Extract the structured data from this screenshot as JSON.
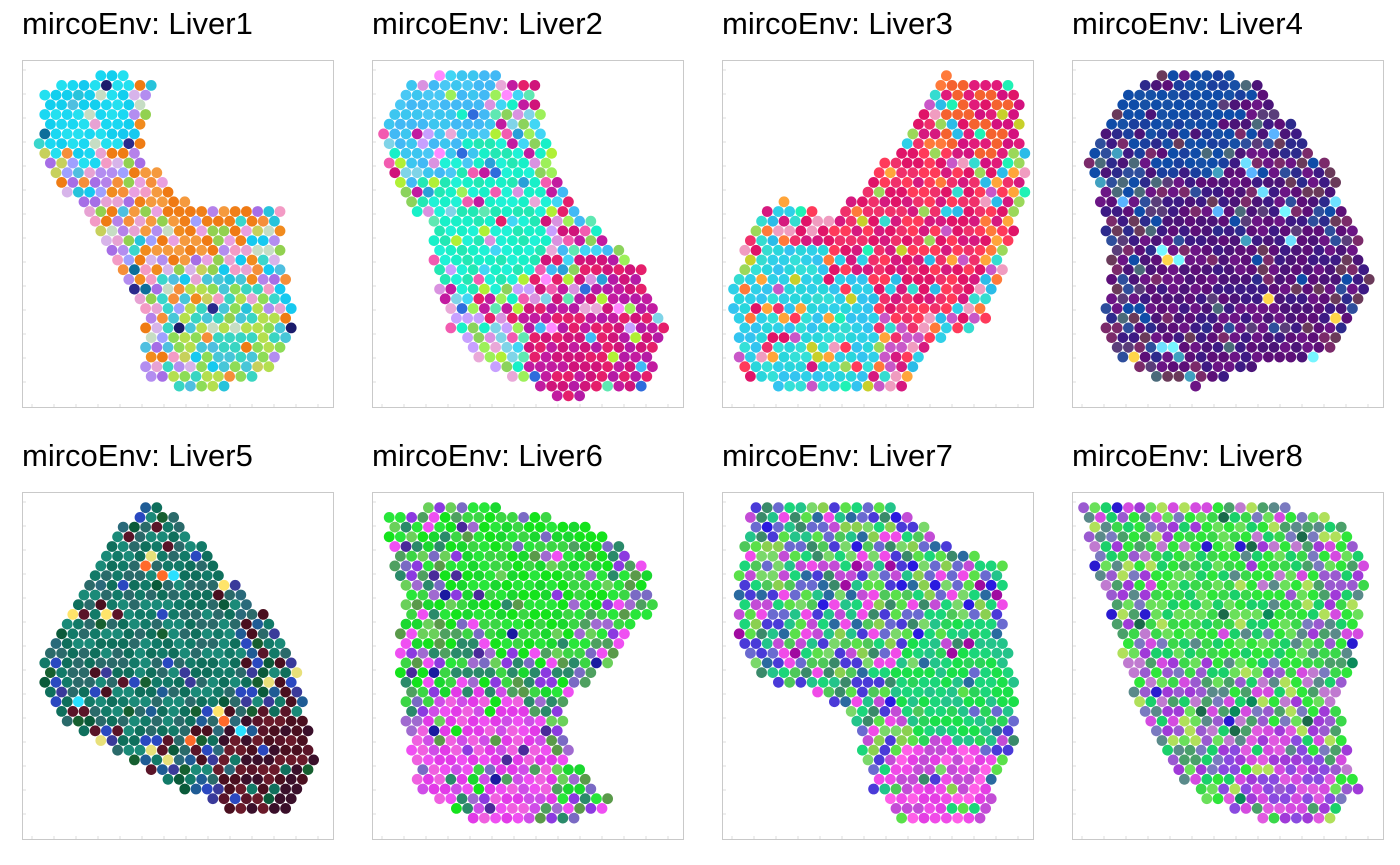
{
  "chart_data": [
    {
      "type": "scatter",
      "title": "mircoEnv: Liver1",
      "outline": [
        [
          0.42,
          0.06
        ],
        [
          0.38,
          0.28
        ],
        [
          0.55,
          0.42
        ],
        [
          0.83,
          0.42
        ],
        [
          0.85,
          0.65
        ],
        [
          0.88,
          0.75
        ],
        [
          0.78,
          0.9
        ],
        [
          0.58,
          0.96
        ],
        [
          0.4,
          0.92
        ],
        [
          0.38,
          0.72
        ],
        [
          0.3,
          0.58
        ],
        [
          0.18,
          0.42
        ],
        [
          0.05,
          0.28
        ],
        [
          0.06,
          0.1
        ],
        [
          0.15,
          0.05
        ],
        [
          0.3,
          0.04
        ]
      ],
      "regions": [
        {
          "c": [
            0.2,
            0.14
          ],
          "r": 0.16,
          "pal": [
            "#1ad8f2",
            "#23e0f0",
            "#12cfee"
          ]
        },
        {
          "c": [
            0.55,
            0.4
          ],
          "r": 0.2,
          "pal": [
            "#ef7a14",
            "#f07f18",
            "#e9a0e0",
            "#f59a3e"
          ]
        },
        {
          "c": [
            0.65,
            0.82
          ],
          "r": 0.2,
          "pal": [
            "#47c6d8",
            "#8ddc57",
            "#b4df4f",
            "#39d5c2"
          ]
        }
      ],
      "palette": [
        "#a66ee6",
        "#b582ea",
        "#e7a2d3",
        "#ef7c14",
        "#f18b1e",
        "#92d150",
        "#4fbfe0",
        "#c6ddc4",
        "#d7b4ea",
        "#f58f3a",
        "#3ad6cc",
        "#9fa0ff",
        "#27c3db",
        "#f39bc5",
        "#c7d05c",
        "#16c9f0",
        "#b38df0"
      ],
      "rare": [
        "#1b1b6b",
        "#0d6e9a",
        "#2a2a8c"
      ]
    },
    {
      "type": "scatter",
      "title": "mircoEnv: Liver2",
      "outline": [
        [
          0.1,
          0.06
        ],
        [
          0.3,
          0.03
        ],
        [
          0.52,
          0.06
        ],
        [
          0.55,
          0.2
        ],
        [
          0.62,
          0.38
        ],
        [
          0.72,
          0.48
        ],
        [
          0.85,
          0.58
        ],
        [
          0.95,
          0.75
        ],
        [
          0.88,
          0.95
        ],
        [
          0.6,
          0.97
        ],
        [
          0.4,
          0.9
        ],
        [
          0.25,
          0.78
        ],
        [
          0.2,
          0.62
        ],
        [
          0.18,
          0.48
        ],
        [
          0.05,
          0.32
        ],
        [
          0.03,
          0.18
        ]
      ],
      "regions": [
        {
          "c": [
            0.22,
            0.15
          ],
          "r": 0.18,
          "pal": [
            "#3cc6f0",
            "#49c8f5",
            "#42b9f5"
          ]
        },
        {
          "c": [
            0.35,
            0.45
          ],
          "r": 0.22,
          "pal": [
            "#18f0c8",
            "#22e8b4",
            "#1ff2d6"
          ]
        },
        {
          "c": [
            0.72,
            0.8
          ],
          "r": 0.24,
          "pal": [
            "#d0147a",
            "#e51f6b",
            "#c21ba0",
            "#b51aa5"
          ]
        }
      ],
      "palette": [
        "#42b9f5",
        "#7fd4e8",
        "#18f0c8",
        "#9df05a",
        "#d0147a",
        "#e51f6b",
        "#c21ba0",
        "#e9a8d8",
        "#8bd35c",
        "#41d6f5",
        "#f25bb0",
        "#b0f036",
        "#5fe8b2",
        "#d992e0",
        "#c7a0ff"
      ],
      "rare": [
        "#2f6cdc",
        "#2a9fd8",
        "#ff89ff"
      ]
    },
    {
      "type": "scatter",
      "title": "mircoEnv: Liver3",
      "outline": [
        [
          0.72,
          0.04
        ],
        [
          0.96,
          0.08
        ],
        [
          0.98,
          0.35
        ],
        [
          0.92,
          0.55
        ],
        [
          0.85,
          0.75
        ],
        [
          0.65,
          0.82
        ],
        [
          0.6,
          0.96
        ],
        [
          0.25,
          0.96
        ],
        [
          0.05,
          0.9
        ],
        [
          0.03,
          0.65
        ],
        [
          0.12,
          0.43
        ],
        [
          0.2,
          0.4
        ],
        [
          0.35,
          0.45
        ],
        [
          0.45,
          0.38
        ],
        [
          0.58,
          0.22
        ]
      ],
      "regions": [
        {
          "c": [
            0.25,
            0.78
          ],
          "r": 0.25,
          "pal": [
            "#2fd0e8",
            "#29d6dc",
            "#33c4f0",
            "#34e0d8"
          ]
        },
        {
          "c": [
            0.6,
            0.5
          ],
          "r": 0.26,
          "pal": [
            "#e01468",
            "#f0306b",
            "#d6197f",
            "#ff3a5a"
          ]
        },
        {
          "c": [
            0.85,
            0.15
          ],
          "r": 0.15,
          "pal": [
            "#e11b7a",
            "#f5622f",
            "#d4117f"
          ]
        }
      ],
      "palette": [
        "#e01468",
        "#f0306b",
        "#d6197f",
        "#ff3a5a",
        "#ff7a3a",
        "#c957c8",
        "#2fd0e8",
        "#35dcd0",
        "#f09cc0",
        "#9bd85a",
        "#ffa53a",
        "#2bbce8"
      ],
      "rare": [
        "#1ff2b5",
        "#c8d02a"
      ]
    },
    {
      "type": "scatter",
      "title": "mircoEnv: Liver4",
      "outline": [
        [
          0.3,
          0.03
        ],
        [
          0.6,
          0.05
        ],
        [
          0.7,
          0.18
        ],
        [
          0.82,
          0.3
        ],
        [
          0.9,
          0.45
        ],
        [
          0.96,
          0.62
        ],
        [
          0.9,
          0.75
        ],
        [
          0.8,
          0.86
        ],
        [
          0.6,
          0.88
        ],
        [
          0.4,
          0.94
        ],
        [
          0.2,
          0.9
        ],
        [
          0.1,
          0.8
        ],
        [
          0.12,
          0.55
        ],
        [
          0.08,
          0.38
        ],
        [
          0.05,
          0.3
        ],
        [
          0.1,
          0.2
        ],
        [
          0.15,
          0.1
        ]
      ],
      "regions": [
        {
          "c": [
            0.35,
            0.15
          ],
          "r": 0.2,
          "pal": [
            "#0f4ca8",
            "#1650a6",
            "#1a3f9e"
          ]
        },
        {
          "c": [
            0.55,
            0.62
          ],
          "r": 0.3,
          "pal": [
            "#4b1478",
            "#5c0f78",
            "#3d1a84",
            "#6b1585"
          ]
        }
      ],
      "palette": [
        "#4b1478",
        "#5c0f78",
        "#3d1a84",
        "#6b1585",
        "#0f4ca8",
        "#2e4e9c",
        "#4a6a7a",
        "#7b2a6a",
        "#5a3d7a",
        "#2d2a8c",
        "#6a3a5a"
      ],
      "rare": [
        "#76f5ff",
        "#ffd54a",
        "#5ab4ff",
        "#40a0c0",
        "#6ee0ff"
      ]
    },
    {
      "type": "scatter",
      "title": "mircoEnv: Liver5",
      "outline": [
        [
          0.38,
          0.03
        ],
        [
          0.48,
          0.05
        ],
        [
          0.62,
          0.2
        ],
        [
          0.78,
          0.35
        ],
        [
          0.88,
          0.5
        ],
        [
          0.95,
          0.78
        ],
        [
          0.85,
          0.92
        ],
        [
          0.7,
          0.93
        ],
        [
          0.5,
          0.85
        ],
        [
          0.3,
          0.75
        ],
        [
          0.1,
          0.65
        ],
        [
          0.05,
          0.5
        ],
        [
          0.12,
          0.38
        ],
        [
          0.2,
          0.25
        ]
      ],
      "regions": [
        {
          "c": [
            0.4,
            0.4
          ],
          "r": 0.3,
          "pal": [
            "#0f6f5c",
            "#127a68",
            "#1a8a78",
            "#2a6a6a"
          ]
        },
        {
          "c": [
            0.8,
            0.8
          ],
          "r": 0.18,
          "pal": [
            "#4a0f1f",
            "#5a1428",
            "#3a0f2a",
            "#6a1a2a"
          ]
        }
      ],
      "palette": [
        "#0f6f5c",
        "#127a68",
        "#1a8a78",
        "#2a6a6a",
        "#165f30",
        "#1f5c95",
        "#2a48c0",
        "#3a3a9a",
        "#4a0f1f",
        "#5a1428",
        "#0a5a3a",
        "#2a6a7a"
      ],
      "rare": [
        "#e8e07a",
        "#ff6a2a",
        "#2ae0ff",
        "#ffe46a"
      ]
    },
    {
      "type": "scatter",
      "title": "mircoEnv: Liver6",
      "outline": [
        [
          0.03,
          0.06
        ],
        [
          0.3,
          0.03
        ],
        [
          0.55,
          0.06
        ],
        [
          0.75,
          0.12
        ],
        [
          0.88,
          0.22
        ],
        [
          0.9,
          0.33
        ],
        [
          0.8,
          0.45
        ],
        [
          0.7,
          0.55
        ],
        [
          0.6,
          0.62
        ],
        [
          0.65,
          0.78
        ],
        [
          0.78,
          0.9
        ],
        [
          0.6,
          0.96
        ],
        [
          0.35,
          0.96
        ],
        [
          0.15,
          0.85
        ],
        [
          0.1,
          0.65
        ],
        [
          0.08,
          0.45
        ],
        [
          0.1,
          0.3
        ],
        [
          0.05,
          0.15
        ]
      ],
      "regions": [
        {
          "c": [
            0.5,
            0.2
          ],
          "r": 0.26,
          "pal": [
            "#14e31c",
            "#28e63a",
            "#1ad82f",
            "#3bd644"
          ]
        },
        {
          "c": [
            0.35,
            0.8
          ],
          "r": 0.24,
          "pal": [
            "#ef4ff2",
            "#e23ae8",
            "#f060e0",
            "#cf4de8"
          ]
        }
      ],
      "palette": [
        "#14e31c",
        "#28e63a",
        "#1ad82f",
        "#3bd644",
        "#8c3ae0",
        "#ef4ff2",
        "#5a9a4a",
        "#7a6ac4",
        "#4ea060",
        "#2a8a6a",
        "#a06ad0",
        "#6ad05a"
      ],
      "rare": [
        "#4a2a9a",
        "#1a1aa0"
      ]
    },
    {
      "type": "scatter",
      "title": "mircoEnv: Liver7",
      "outline": [
        [
          0.1,
          0.04
        ],
        [
          0.55,
          0.04
        ],
        [
          0.68,
          0.12
        ],
        [
          0.8,
          0.18
        ],
        [
          0.9,
          0.2
        ],
        [
          0.9,
          0.4
        ],
        [
          0.95,
          0.55
        ],
        [
          0.95,
          0.7
        ],
        [
          0.88,
          0.85
        ],
        [
          0.85,
          0.96
        ],
        [
          0.6,
          0.96
        ],
        [
          0.48,
          0.85
        ],
        [
          0.42,
          0.65
        ],
        [
          0.3,
          0.58
        ],
        [
          0.15,
          0.55
        ],
        [
          0.05,
          0.45
        ],
        [
          0.04,
          0.25
        ]
      ],
      "regions": [
        {
          "c": [
            0.7,
            0.88
          ],
          "r": 0.18,
          "pal": [
            "#f04be8",
            "#e43ee4",
            "#ff5fe8",
            "#c34cd6"
          ]
        },
        {
          "c": [
            0.75,
            0.55
          ],
          "r": 0.2,
          "pal": [
            "#1bd67a",
            "#23c48a",
            "#2ad45a",
            "#1ae04a"
          ]
        }
      ],
      "palette": [
        "#1bd67a",
        "#4ec85a",
        "#7ad86a",
        "#23c48a",
        "#6a6ad0",
        "#4a3ad8",
        "#c34cd6",
        "#f04be8",
        "#3a8a6a",
        "#8ad050",
        "#2a6aa0",
        "#5ae04a"
      ],
      "rare": [
        "#2a1ae0",
        "#a00aa0"
      ]
    },
    {
      "type": "scatter",
      "title": "mircoEnv: Liver8",
      "outline": [
        [
          0.03,
          0.04
        ],
        [
          0.3,
          0.02
        ],
        [
          0.62,
          0.03
        ],
        [
          0.85,
          0.08
        ],
        [
          0.95,
          0.18
        ],
        [
          0.92,
          0.45
        ],
        [
          0.85,
          0.6
        ],
        [
          0.88,
          0.72
        ],
        [
          0.92,
          0.85
        ],
        [
          0.85,
          0.95
        ],
        [
          0.65,
          0.95
        ],
        [
          0.45,
          0.9
        ],
        [
          0.3,
          0.78
        ],
        [
          0.2,
          0.62
        ],
        [
          0.15,
          0.42
        ],
        [
          0.1,
          0.3
        ],
        [
          0.05,
          0.15
        ]
      ],
      "regions": [
        {
          "c": [
            0.5,
            0.3
          ],
          "r": 0.24,
          "pal": [
            "#2ee63a",
            "#6ae05a",
            "#3ad84a",
            "#1ad06a"
          ]
        },
        {
          "c": [
            0.65,
            0.85
          ],
          "r": 0.18,
          "pal": [
            "#d44be0",
            "#a03ad8",
            "#e05ae0",
            "#8a4ae0"
          ]
        }
      ],
      "palette": [
        "#2ee63a",
        "#6ae05a",
        "#a03ad8",
        "#d44be0",
        "#7a7ac0",
        "#4aa06a",
        "#c07ad0",
        "#3ad84a",
        "#5a8a8a",
        "#b0e05a",
        "#1ad06a",
        "#9a5ad0"
      ],
      "rare": [
        "#1a6a4a",
        "#2a1ad0",
        "#0a8a5a"
      ]
    }
  ]
}
